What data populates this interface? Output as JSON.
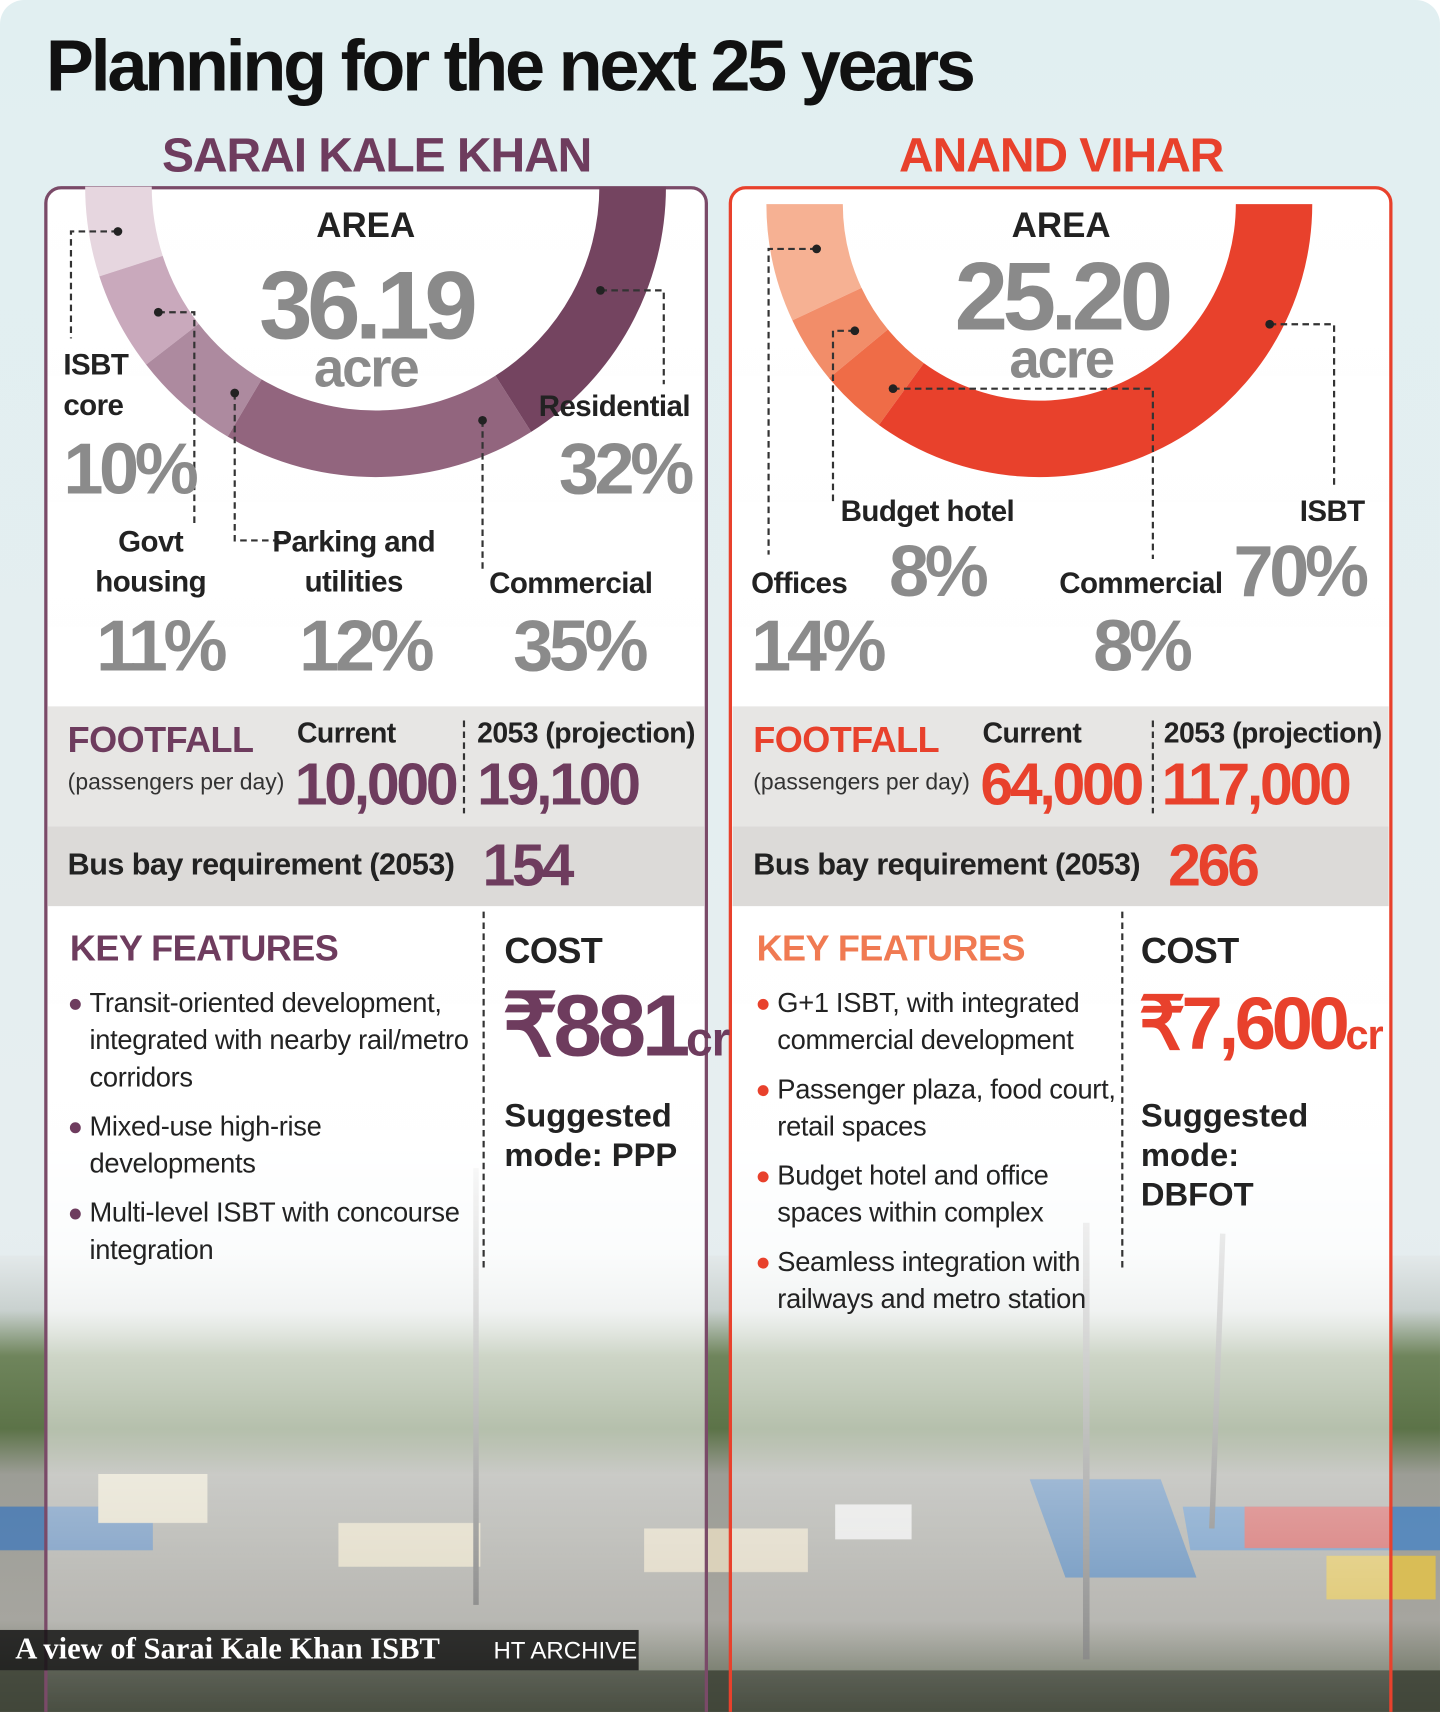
{
  "title": "Planning for the next 25 years",
  "chart_data": [
    {
      "type": "donut",
      "title": "SARAI KALE KHAN",
      "center_label": "AREA",
      "center_value": "36.19",
      "center_unit": "acre",
      "categories": [
        "ISBT core",
        "Govt housing",
        "Parking and utilities",
        "Commercial",
        "Residential"
      ],
      "values": [
        10,
        11,
        12,
        35,
        32
      ],
      "value_labels": [
        "10%",
        "11%",
        "12%",
        "35%",
        "32%"
      ],
      "colors": [
        "#e6d6df",
        "#c9a9bc",
        "#ad8a9f",
        "#92657e",
        "#744460"
      ]
    },
    {
      "type": "donut",
      "title": "ANAND VIHAR",
      "center_label": "AREA",
      "center_value": "25.20",
      "center_unit": "acre",
      "categories": [
        "Offices",
        "Budget hotel",
        "Commercial",
        "ISBT"
      ],
      "values": [
        14,
        8,
        8,
        70
      ],
      "value_labels": [
        "14%",
        "8%",
        "8%",
        "70%"
      ],
      "colors": [
        "#f6b193",
        "#f28d69",
        "#ef6c47",
        "#e8412c"
      ]
    }
  ],
  "panels": [
    {
      "footfall_label": "FOOTFALL",
      "footfall_sub": "(passengers per day)",
      "current_label": "Current",
      "current": "10,000",
      "projection_label": "2053 (projection)",
      "projection": "19,100",
      "bus_bay_label": "Bus bay requirement (2053)",
      "bus_bay": "154",
      "features_title": "KEY FEATURES",
      "features": [
        "Transit-oriented development, integrated with nearby rail/metro corridors",
        "Mixed-use high-rise developments",
        "Multi-level ISBT with concourse integration"
      ],
      "cost_title": "COST",
      "cost": "₹881",
      "cost_unit": "cr",
      "mode": "Suggested mode: PPP"
    },
    {
      "footfall_label": "FOOTFALL",
      "footfall_sub": "(passengers per day)",
      "current_label": "Current",
      "current": "64,000",
      "projection_label": "2053 (projection)",
      "projection": "117,000",
      "bus_bay_label": "Bus bay requirement (2053)",
      "bus_bay": "266",
      "features_title": "KEY FEATURES",
      "features": [
        "G+1 ISBT, with integrated commercial development",
        "Passenger plaza, food court, retail spaces",
        "Budget hotel and office spaces within complex",
        "Seamless integration with railways and metro station"
      ],
      "cost_title": "COST",
      "cost": "₹7,600",
      "cost_unit": "cr",
      "mode": "Suggested mode: DBFOT"
    }
  ],
  "caption": "A view of Sarai Kale Khan ISBT",
  "credit": "HT ARCHIVE"
}
